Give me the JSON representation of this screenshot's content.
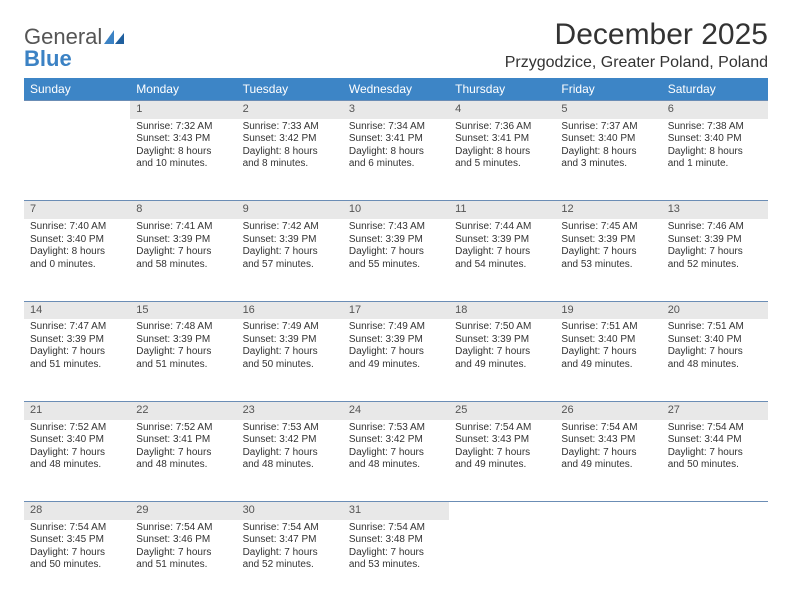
{
  "brand": {
    "part1": "General",
    "part2": "Blue"
  },
  "title": "December 2025",
  "location": "Przygodzice, Greater Poland, Poland",
  "header_bg": "#3d85c6",
  "daynum_bg": "#e8e8e8",
  "week_border": "#6b8db5",
  "weekdays": [
    "Sunday",
    "Monday",
    "Tuesday",
    "Wednesday",
    "Thursday",
    "Friday",
    "Saturday"
  ],
  "weeks": [
    [
      null,
      {
        "n": "1",
        "sr": "7:32 AM",
        "ss": "3:43 PM",
        "dl1": "Daylight: 8 hours",
        "dl2": "and 10 minutes."
      },
      {
        "n": "2",
        "sr": "7:33 AM",
        "ss": "3:42 PM",
        "dl1": "Daylight: 8 hours",
        "dl2": "and 8 minutes."
      },
      {
        "n": "3",
        "sr": "7:34 AM",
        "ss": "3:41 PM",
        "dl1": "Daylight: 8 hours",
        "dl2": "and 6 minutes."
      },
      {
        "n": "4",
        "sr": "7:36 AM",
        "ss": "3:41 PM",
        "dl1": "Daylight: 8 hours",
        "dl2": "and 5 minutes."
      },
      {
        "n": "5",
        "sr": "7:37 AM",
        "ss": "3:40 PM",
        "dl1": "Daylight: 8 hours",
        "dl2": "and 3 minutes."
      },
      {
        "n": "6",
        "sr": "7:38 AM",
        "ss": "3:40 PM",
        "dl1": "Daylight: 8 hours",
        "dl2": "and 1 minute."
      }
    ],
    [
      {
        "n": "7",
        "sr": "7:40 AM",
        "ss": "3:40 PM",
        "dl1": "Daylight: 8 hours",
        "dl2": "and 0 minutes."
      },
      {
        "n": "8",
        "sr": "7:41 AM",
        "ss": "3:39 PM",
        "dl1": "Daylight: 7 hours",
        "dl2": "and 58 minutes."
      },
      {
        "n": "9",
        "sr": "7:42 AM",
        "ss": "3:39 PM",
        "dl1": "Daylight: 7 hours",
        "dl2": "and 57 minutes."
      },
      {
        "n": "10",
        "sr": "7:43 AM",
        "ss": "3:39 PM",
        "dl1": "Daylight: 7 hours",
        "dl2": "and 55 minutes."
      },
      {
        "n": "11",
        "sr": "7:44 AM",
        "ss": "3:39 PM",
        "dl1": "Daylight: 7 hours",
        "dl2": "and 54 minutes."
      },
      {
        "n": "12",
        "sr": "7:45 AM",
        "ss": "3:39 PM",
        "dl1": "Daylight: 7 hours",
        "dl2": "and 53 minutes."
      },
      {
        "n": "13",
        "sr": "7:46 AM",
        "ss": "3:39 PM",
        "dl1": "Daylight: 7 hours",
        "dl2": "and 52 minutes."
      }
    ],
    [
      {
        "n": "14",
        "sr": "7:47 AM",
        "ss": "3:39 PM",
        "dl1": "Daylight: 7 hours",
        "dl2": "and 51 minutes."
      },
      {
        "n": "15",
        "sr": "7:48 AM",
        "ss": "3:39 PM",
        "dl1": "Daylight: 7 hours",
        "dl2": "and 51 minutes."
      },
      {
        "n": "16",
        "sr": "7:49 AM",
        "ss": "3:39 PM",
        "dl1": "Daylight: 7 hours",
        "dl2": "and 50 minutes."
      },
      {
        "n": "17",
        "sr": "7:49 AM",
        "ss": "3:39 PM",
        "dl1": "Daylight: 7 hours",
        "dl2": "and 49 minutes."
      },
      {
        "n": "18",
        "sr": "7:50 AM",
        "ss": "3:39 PM",
        "dl1": "Daylight: 7 hours",
        "dl2": "and 49 minutes."
      },
      {
        "n": "19",
        "sr": "7:51 AM",
        "ss": "3:40 PM",
        "dl1": "Daylight: 7 hours",
        "dl2": "and 49 minutes."
      },
      {
        "n": "20",
        "sr": "7:51 AM",
        "ss": "3:40 PM",
        "dl1": "Daylight: 7 hours",
        "dl2": "and 48 minutes."
      }
    ],
    [
      {
        "n": "21",
        "sr": "7:52 AM",
        "ss": "3:40 PM",
        "dl1": "Daylight: 7 hours",
        "dl2": "and 48 minutes."
      },
      {
        "n": "22",
        "sr": "7:52 AM",
        "ss": "3:41 PM",
        "dl1": "Daylight: 7 hours",
        "dl2": "and 48 minutes."
      },
      {
        "n": "23",
        "sr": "7:53 AM",
        "ss": "3:42 PM",
        "dl1": "Daylight: 7 hours",
        "dl2": "and 48 minutes."
      },
      {
        "n": "24",
        "sr": "7:53 AM",
        "ss": "3:42 PM",
        "dl1": "Daylight: 7 hours",
        "dl2": "and 48 minutes."
      },
      {
        "n": "25",
        "sr": "7:54 AM",
        "ss": "3:43 PM",
        "dl1": "Daylight: 7 hours",
        "dl2": "and 49 minutes."
      },
      {
        "n": "26",
        "sr": "7:54 AM",
        "ss": "3:43 PM",
        "dl1": "Daylight: 7 hours",
        "dl2": "and 49 minutes."
      },
      {
        "n": "27",
        "sr": "7:54 AM",
        "ss": "3:44 PM",
        "dl1": "Daylight: 7 hours",
        "dl2": "and 50 minutes."
      }
    ],
    [
      {
        "n": "28",
        "sr": "7:54 AM",
        "ss": "3:45 PM",
        "dl1": "Daylight: 7 hours",
        "dl2": "and 50 minutes."
      },
      {
        "n": "29",
        "sr": "7:54 AM",
        "ss": "3:46 PM",
        "dl1": "Daylight: 7 hours",
        "dl2": "and 51 minutes."
      },
      {
        "n": "30",
        "sr": "7:54 AM",
        "ss": "3:47 PM",
        "dl1": "Daylight: 7 hours",
        "dl2": "and 52 minutes."
      },
      {
        "n": "31",
        "sr": "7:54 AM",
        "ss": "3:48 PM",
        "dl1": "Daylight: 7 hours",
        "dl2": "and 53 minutes."
      },
      null,
      null,
      null
    ]
  ],
  "labels": {
    "sunrise": "Sunrise:",
    "sunset": "Sunset:"
  }
}
